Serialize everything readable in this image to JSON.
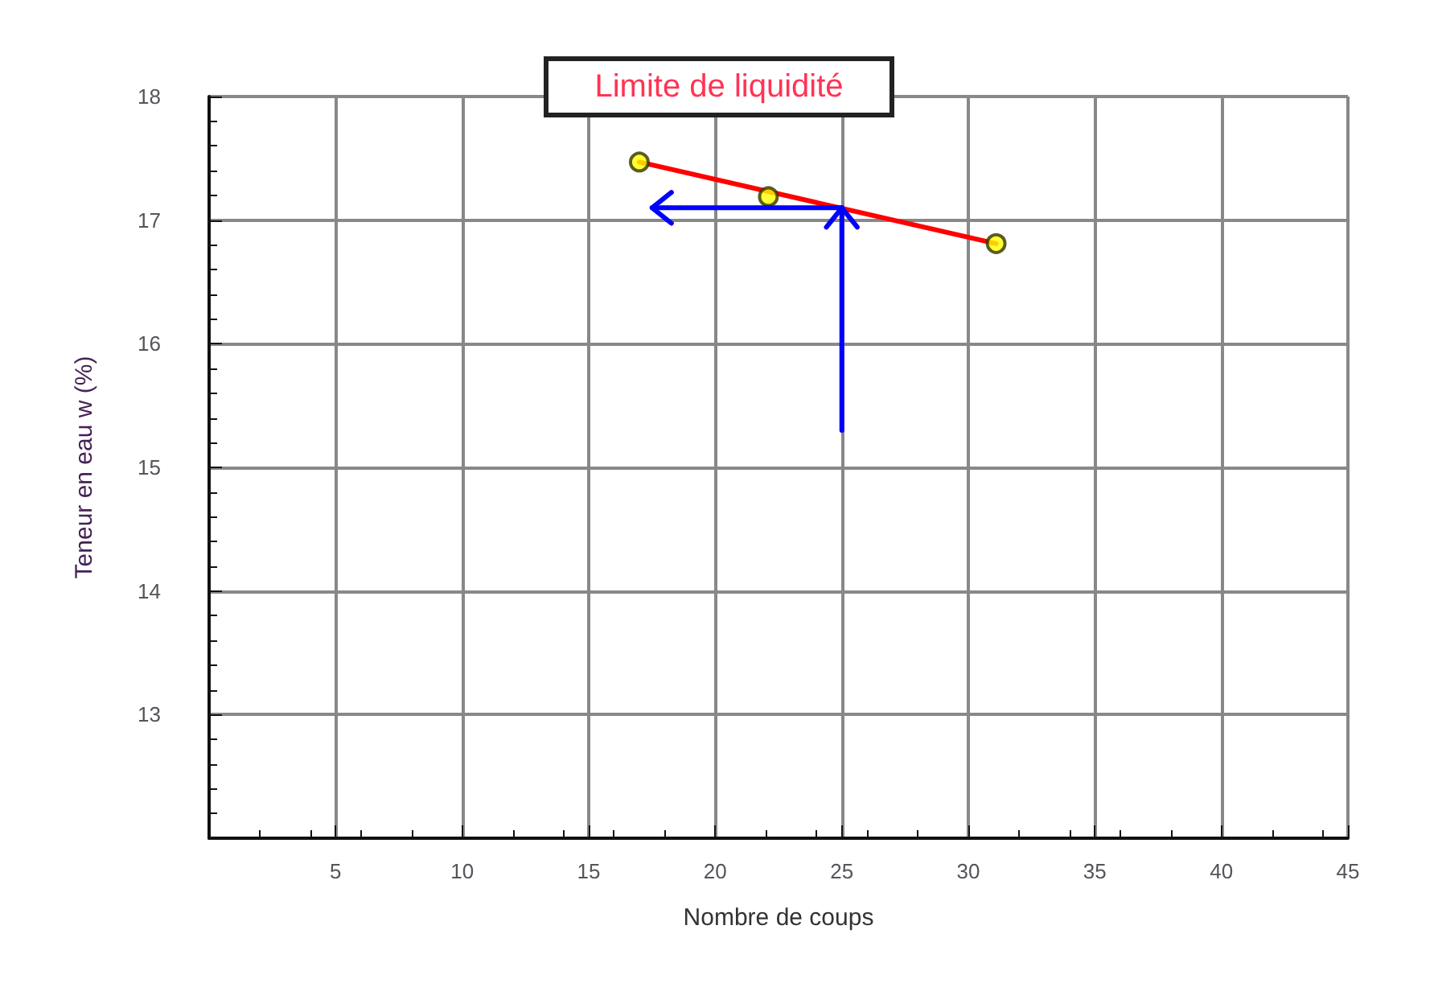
{
  "chart_data": {
    "type": "scatter",
    "title": "Limite de liquidité",
    "xlabel": "Nombre de coups",
    "ylabel": "Teneur en eau w (%)",
    "xlim": [
      0,
      45
    ],
    "xticks": [
      5,
      10,
      15,
      20,
      25,
      30,
      35,
      40,
      45
    ],
    "ylim": [
      12,
      18
    ],
    "yticks": [
      13,
      14,
      15,
      16,
      17,
      18
    ],
    "grid": true,
    "series": [
      {
        "type": "line",
        "color": "#ff0000",
        "marker": "none",
        "x": [
          17,
          31.1
        ],
        "values": [
          17.47,
          16.81
        ]
      },
      {
        "color": "#ffff00",
        "marker": "circle",
        "x": [
          17,
          22.1,
          31.1
        ],
        "values": [
          17.47,
          17.19,
          16.81
        ]
      }
    ]
  }
}
